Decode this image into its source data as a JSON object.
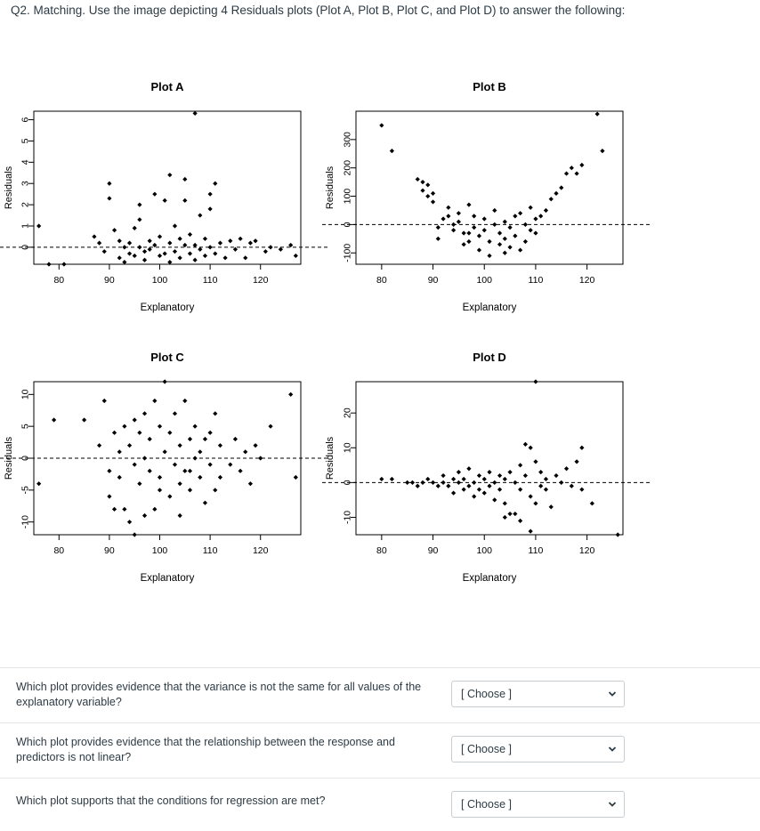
{
  "header": {
    "question": "Q2. Matching. Use the image depicting 4 Residuals plots (Plot A, Plot B, Plot C, and Plot D) to answer the following:"
  },
  "colors": {
    "points": "#000000",
    "axis": "#000000",
    "reference_line": "#000000",
    "text": "#2d3b45",
    "border": "#c7cdd1"
  },
  "chart_data": [
    {
      "type": "scatter",
      "title": "Plot A",
      "xlabel": "Explanatory",
      "ylabel": "Residuals",
      "xlim": [
        75,
        128
      ],
      "ylim": [
        -0.8,
        6.4
      ],
      "xticks": [
        80,
        90,
        100,
        110,
        120
      ],
      "yticks": [
        0,
        1,
        2,
        3,
        4,
        5,
        6
      ],
      "reference_line_y": 0,
      "points": [
        [
          76,
          1.0
        ],
        [
          78,
          -0.8
        ],
        [
          81,
          -0.8
        ],
        [
          87,
          0.5
        ],
        [
          88,
          0.2
        ],
        [
          89,
          -0.2
        ],
        [
          90,
          3.0
        ],
        [
          90,
          2.3
        ],
        [
          91,
          0.8
        ],
        [
          92,
          0.3
        ],
        [
          92,
          -0.5
        ],
        [
          93,
          0.0
        ],
        [
          93,
          -0.7
        ],
        [
          94,
          0.2
        ],
        [
          94,
          -0.3
        ],
        [
          95,
          0.9
        ],
        [
          95,
          -0.4
        ],
        [
          96,
          1.3
        ],
        [
          96,
          0.0
        ],
        [
          97,
          -0.2
        ],
        [
          97,
          -0.6
        ],
        [
          98,
          0.3
        ],
        [
          98,
          -0.1
        ],
        [
          99,
          2.5
        ],
        [
          99,
          0.1
        ],
        [
          100,
          -0.4
        ],
        [
          100,
          0.5
        ],
        [
          101,
          2.2
        ],
        [
          101,
          -0.3
        ],
        [
          102,
          0.2
        ],
        [
          102,
          -0.7
        ],
        [
          103,
          1.0
        ],
        [
          103,
          -0.2
        ],
        [
          104,
          0.4
        ],
        [
          104,
          -0.5
        ],
        [
          105,
          3.2
        ],
        [
          105,
          0.1
        ],
        [
          105,
          2.2
        ],
        [
          106,
          -0.3
        ],
        [
          106,
          0.6
        ],
        [
          107,
          0.1
        ],
        [
          107,
          -0.6
        ],
        [
          108,
          1.5
        ],
        [
          108,
          -0.1
        ],
        [
          109,
          0.4
        ],
        [
          109,
          -0.4
        ],
        [
          110,
          0.0
        ],
        [
          110,
          2.5
        ],
        [
          110,
          1.8
        ],
        [
          111,
          3.0
        ],
        [
          111,
          -0.3
        ],
        [
          112,
          0.2
        ],
        [
          113,
          -0.5
        ],
        [
          114,
          0.3
        ],
        [
          115,
          -0.1
        ],
        [
          116,
          0.4
        ],
        [
          117,
          -0.5
        ],
        [
          118,
          0.2
        ],
        [
          119,
          0.3
        ],
        [
          121,
          -0.2
        ],
        [
          122,
          0.0
        ],
        [
          124,
          -0.1
        ],
        [
          126,
          0.1
        ],
        [
          127,
          -0.4
        ],
        [
          102,
          3.4
        ],
        [
          107,
          6.3
        ],
        [
          96,
          2.0
        ]
      ]
    },
    {
      "type": "scatter",
      "title": "Plot B",
      "xlabel": "Explanatory",
      "ylabel": "Residuals",
      "xlim": [
        75,
        127
      ],
      "ylim": [
        -140,
        400
      ],
      "xticks": [
        80,
        90,
        100,
        110,
        120
      ],
      "yticks": [
        -100,
        0,
        100,
        200,
        300
      ],
      "reference_line_y": 0,
      "points": [
        [
          80,
          350
        ],
        [
          82,
          260
        ],
        [
          87,
          160
        ],
        [
          88,
          150
        ],
        [
          88,
          120
        ],
        [
          89,
          140
        ],
        [
          89,
          100
        ],
        [
          90,
          110
        ],
        [
          90,
          80
        ],
        [
          91,
          -10
        ],
        [
          91,
          -50
        ],
        [
          92,
          20
        ],
        [
          93,
          60
        ],
        [
          93,
          30
        ],
        [
          94,
          0
        ],
        [
          94,
          -20
        ],
        [
          95,
          40
        ],
        [
          95,
          10
        ],
        [
          96,
          -30
        ],
        [
          96,
          -70
        ],
        [
          97,
          70
        ],
        [
          97,
          -60
        ],
        [
          98,
          30
        ],
        [
          98,
          -10
        ],
        [
          99,
          -40
        ],
        [
          99,
          -90
        ],
        [
          100,
          20
        ],
        [
          100,
          -20
        ],
        [
          101,
          -60
        ],
        [
          101,
          -110
        ],
        [
          102,
          50
        ],
        [
          102,
          0
        ],
        [
          103,
          -30
        ],
        [
          103,
          -70
        ],
        [
          104,
          10
        ],
        [
          104,
          -50
        ],
        [
          105,
          -10
        ],
        [
          105,
          -80
        ],
        [
          106,
          30
        ],
        [
          106,
          -40
        ],
        [
          107,
          -90
        ],
        [
          107,
          40
        ],
        [
          108,
          0
        ],
        [
          108,
          -60
        ],
        [
          109,
          -20
        ],
        [
          109,
          60
        ],
        [
          110,
          -30
        ],
        [
          110,
          20
        ],
        [
          111,
          30
        ],
        [
          112,
          50
        ],
        [
          113,
          90
        ],
        [
          114,
          110
        ],
        [
          115,
          130
        ],
        [
          116,
          180
        ],
        [
          117,
          200
        ],
        [
          118,
          180
        ],
        [
          119,
          210
        ],
        [
          123,
          260
        ],
        [
          122,
          390
        ],
        [
          100,
          -150
        ],
        [
          104,
          -100
        ],
        [
          97,
          -30
        ]
      ]
    },
    {
      "type": "scatter",
      "title": "Plot C",
      "xlabel": "Explanatory",
      "ylabel": "Residuals",
      "xlim": [
        75,
        128
      ],
      "ylim": [
        -12,
        12
      ],
      "xticks": [
        80,
        90,
        100,
        110,
        120
      ],
      "yticks": [
        -10,
        -5,
        0,
        5,
        10
      ],
      "reference_line_y": 0,
      "points": [
        [
          76,
          -4
        ],
        [
          79,
          6
        ],
        [
          85,
          6
        ],
        [
          88,
          2
        ],
        [
          89,
          9
        ],
        [
          90,
          -2
        ],
        [
          90,
          -6
        ],
        [
          91,
          4
        ],
        [
          92,
          -3
        ],
        [
          92,
          1
        ],
        [
          93,
          5
        ],
        [
          93,
          -8
        ],
        [
          94,
          2
        ],
        [
          94,
          -10
        ],
        [
          95,
          6
        ],
        [
          95,
          -1
        ],
        [
          96,
          4
        ],
        [
          96,
          -4
        ],
        [
          97,
          7
        ],
        [
          97,
          0
        ],
        [
          98,
          -2
        ],
        [
          98,
          3
        ],
        [
          99,
          9
        ],
        [
          99,
          -8
        ],
        [
          100,
          5
        ],
        [
          100,
          -3
        ],
        [
          101,
          1
        ],
        [
          101,
          12
        ],
        [
          102,
          -6
        ],
        [
          102,
          4
        ],
        [
          103,
          -1
        ],
        [
          103,
          7
        ],
        [
          104,
          2
        ],
        [
          104,
          -4
        ],
        [
          105,
          -2
        ],
        [
          105,
          9
        ],
        [
          106,
          3
        ],
        [
          106,
          -5
        ],
        [
          107,
          0
        ],
        [
          107,
          5
        ],
        [
          108,
          -3
        ],
        [
          108,
          1
        ],
        [
          109,
          -7
        ],
        [
          109,
          3
        ],
        [
          110,
          -1
        ],
        [
          110,
          4
        ],
        [
          111,
          -5
        ],
        [
          111,
          7
        ],
        [
          112,
          2
        ],
        [
          112,
          -3
        ],
        [
          114,
          -1
        ],
        [
          115,
          3
        ],
        [
          116,
          -2
        ],
        [
          117,
          1
        ],
        [
          118,
          -4
        ],
        [
          119,
          2
        ],
        [
          120,
          0
        ],
        [
          122,
          5
        ],
        [
          126,
          10
        ],
        [
          127,
          -3
        ],
        [
          91,
          -8
        ],
        [
          97,
          -9
        ],
        [
          95,
          -12
        ],
        [
          104,
          -9
        ],
        [
          100,
          -5
        ],
        [
          106,
          -2
        ]
      ]
    },
    {
      "type": "scatter",
      "title": "Plot D",
      "xlabel": "Explanatory",
      "ylabel": "Residuals",
      "xlim": [
        75,
        127
      ],
      "ylim": [
        -15,
        29
      ],
      "xticks": [
        80,
        90,
        100,
        110,
        120
      ],
      "yticks": [
        -10,
        0,
        10,
        20
      ],
      "reference_line_y": 0,
      "points": [
        [
          80,
          1
        ],
        [
          82,
          1
        ],
        [
          85,
          0
        ],
        [
          86,
          0
        ],
        [
          87,
          -1
        ],
        [
          88,
          0
        ],
        [
          89,
          1
        ],
        [
          90,
          0
        ],
        [
          91,
          -1
        ],
        [
          92,
          0
        ],
        [
          92,
          2
        ],
        [
          93,
          -1
        ],
        [
          94,
          1
        ],
        [
          94,
          -3
        ],
        [
          95,
          0
        ],
        [
          95,
          3
        ],
        [
          96,
          -2
        ],
        [
          96,
          1
        ],
        [
          97,
          4
        ],
        [
          97,
          -1
        ],
        [
          98,
          0
        ],
        [
          98,
          -4
        ],
        [
          99,
          2
        ],
        [
          99,
          -2
        ],
        [
          100,
          1
        ],
        [
          100,
          -3
        ],
        [
          101,
          3
        ],
        [
          101,
          -1
        ],
        [
          102,
          0
        ],
        [
          102,
          -5
        ],
        [
          103,
          2
        ],
        [
          103,
          -2
        ],
        [
          104,
          1
        ],
        [
          104,
          -6
        ],
        [
          105,
          -9
        ],
        [
          105,
          3
        ],
        [
          106,
          -9
        ],
        [
          106,
          0
        ],
        [
          107,
          5
        ],
        [
          107,
          -2
        ],
        [
          108,
          11
        ],
        [
          108,
          2
        ],
        [
          109,
          -4
        ],
        [
          109,
          10
        ],
        [
          110,
          -6
        ],
        [
          110,
          6
        ],
        [
          111,
          -1
        ],
        [
          111,
          3
        ],
        [
          112,
          1
        ],
        [
          112,
          -2
        ],
        [
          113,
          -7
        ],
        [
          114,
          2
        ],
        [
          115,
          0
        ],
        [
          116,
          4
        ],
        [
          117,
          -1
        ],
        [
          118,
          6
        ],
        [
          119,
          10
        ],
        [
          119,
          -2
        ],
        [
          121,
          -6
        ],
        [
          126,
          -15
        ],
        [
          110,
          29
        ],
        [
          107,
          -11
        ],
        [
          104,
          -10
        ],
        [
          109,
          -14
        ]
      ]
    }
  ],
  "questions": [
    {
      "text": "Which plot provides evidence that the variance is not the same for all values of the explanatory variable?",
      "selected": "[ Choose ]"
    },
    {
      "text": "Which plot provides evidence that the relationship between the response and predictors is not linear?",
      "selected": "[ Choose ]"
    },
    {
      "text": "Which plot supports that the conditions for regression are met?",
      "selected": "[ Choose ]"
    }
  ],
  "icons": {
    "dropdown": "chevron-down-icon"
  }
}
